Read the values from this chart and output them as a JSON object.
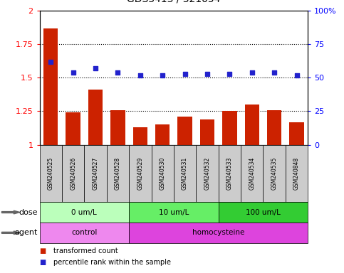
{
  "samples": [
    "GSM240525",
    "GSM240526",
    "GSM240527",
    "GSM240528",
    "GSM240529",
    "GSM240530",
    "GSM240531",
    "GSM240532",
    "GSM240533",
    "GSM240534",
    "GSM240535",
    "GSM240848"
  ],
  "bar_values": [
    1.87,
    1.24,
    1.41,
    1.26,
    1.13,
    1.15,
    1.21,
    1.19,
    1.25,
    1.3,
    1.26,
    1.17
  ],
  "percentile_values": [
    62,
    54,
    57,
    54,
    52,
    52,
    53,
    53,
    53,
    54,
    54,
    52
  ],
  "bar_color": "#cc2200",
  "blue_color": "#2222cc",
  "ylim_left": [
    1.0,
    2.0
  ],
  "ylim_right": [
    0,
    100
  ],
  "yticks_left": [
    1.0,
    1.25,
    1.5,
    1.75,
    2.0
  ],
  "yticks_right": [
    0,
    25,
    50,
    75,
    100
  ],
  "ytick_labels_left": [
    "1",
    "1.25",
    "1.5",
    "1.75",
    "2"
  ],
  "ytick_labels_right": [
    "0",
    "25",
    "50",
    "75",
    "100%"
  ],
  "dose_groups": [
    {
      "label": "0 um/L",
      "start": 0,
      "end": 4,
      "color": "#bbffbb"
    },
    {
      "label": "10 um/L",
      "start": 4,
      "end": 8,
      "color": "#66ee66"
    },
    {
      "label": "100 um/L",
      "start": 8,
      "end": 12,
      "color": "#33cc33"
    }
  ],
  "agent_groups": [
    {
      "label": "control",
      "start": 0,
      "end": 4,
      "color": "#ee88ee"
    },
    {
      "label": "homocysteine",
      "start": 4,
      "end": 12,
      "color": "#dd44dd"
    }
  ],
  "dose_label": "dose",
  "agent_label": "agent",
  "legend_bar": "transformed count",
  "legend_blue": "percentile rank within the sample",
  "bg_color": "#ffffff",
  "bar_bg_color": "#cccccc",
  "grid_dotted_at": [
    1.25,
    1.5,
    1.75
  ]
}
